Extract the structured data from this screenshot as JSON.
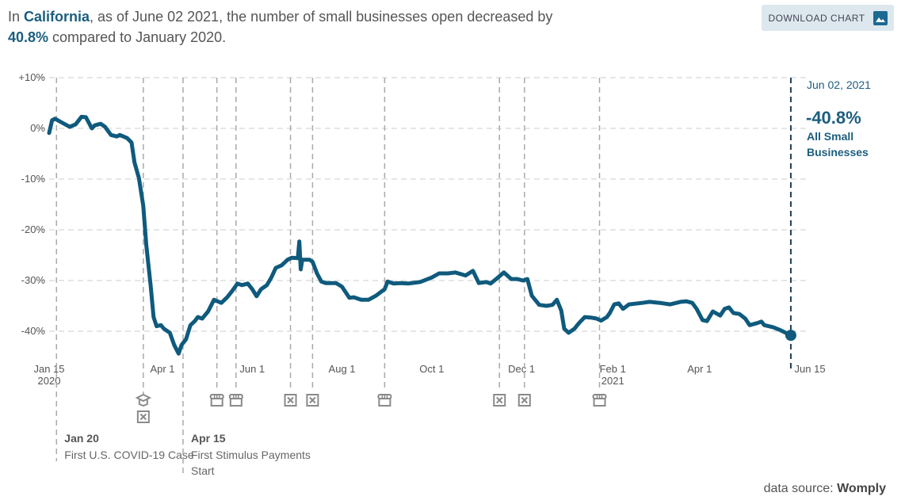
{
  "headline": {
    "prefix": "In ",
    "region": "California",
    "middle": ", as of June 02 2021, the number of small businesses open decreased by ",
    "change": "40.8%",
    "suffix": " compared to January 2020."
  },
  "download_button": {
    "label": "DOWNLOAD CHART",
    "icon": "image-icon"
  },
  "source": {
    "label": "data source: ",
    "name": "Womply"
  },
  "colors": {
    "line": "#0f5a7d",
    "grid": "#dddddd",
    "event_line": "#aaaaaa",
    "icon": "#8a8a8a",
    "accent_text": "#1b5e7e",
    "button_bg": "#dde8ee"
  },
  "chart_data": {
    "type": "line",
    "title": "",
    "xlabel": "",
    "ylabel": "",
    "ylim": [
      -47,
      10
    ],
    "xlim": [
      "2020-01-15",
      "2021-06-15"
    ],
    "grid": true,
    "y_ticks": [
      {
        "value": 10,
        "label": "+10%"
      },
      {
        "value": 0,
        "label": "0%"
      },
      {
        "value": -10,
        "label": "-10%"
      },
      {
        "value": -20,
        "label": "-20%"
      },
      {
        "value": -30,
        "label": "-30%"
      },
      {
        "value": -40,
        "label": "-40%"
      }
    ],
    "x_ticks": [
      {
        "date": "2020-01-15",
        "label": "Jan 15",
        "sub": "2020"
      },
      {
        "date": "2020-04-01",
        "label": "Apr 1",
        "sub": ""
      },
      {
        "date": "2020-06-01",
        "label": "Jun 1",
        "sub": ""
      },
      {
        "date": "2020-08-01",
        "label": "Aug 1",
        "sub": ""
      },
      {
        "date": "2020-10-01",
        "label": "Oct 1",
        "sub": ""
      },
      {
        "date": "2020-12-01",
        "label": "Dec 1",
        "sub": ""
      },
      {
        "date": "2021-02-01",
        "label": "Feb 1",
        "sub": "2021"
      },
      {
        "date": "2021-04-01",
        "label": "Apr 1",
        "sub": ""
      },
      {
        "date": "2021-06-15",
        "label": "Jun 15",
        "sub": ""
      }
    ],
    "series": [
      {
        "name": "All Small Businesses",
        "points": [
          [
            "2020-01-15",
            -0.9
          ],
          [
            "2020-01-17",
            1.6
          ],
          [
            "2020-01-19",
            1.9
          ],
          [
            "2020-01-24",
            1.1
          ],
          [
            "2020-01-29",
            0.3
          ],
          [
            "2020-02-02",
            0.8
          ],
          [
            "2020-02-06",
            2.3
          ],
          [
            "2020-02-09",
            2.2
          ],
          [
            "2020-02-13",
            0.0
          ],
          [
            "2020-02-15",
            0.6
          ],
          [
            "2020-02-19",
            0.9
          ],
          [
            "2020-02-22",
            0.3
          ],
          [
            "2020-02-26",
            -1.3
          ],
          [
            "2020-03-01",
            -1.6
          ],
          [
            "2020-03-03",
            -1.3
          ],
          [
            "2020-03-08",
            -1.9
          ],
          [
            "2020-03-11",
            -2.8
          ],
          [
            "2020-03-13",
            -6.7
          ],
          [
            "2020-03-16",
            -9.8
          ],
          [
            "2020-03-19",
            -15.3
          ],
          [
            "2020-03-21",
            -23
          ],
          [
            "2020-03-24",
            -31
          ],
          [
            "2020-03-26",
            -37.2
          ],
          [
            "2020-03-28",
            -39
          ],
          [
            "2020-03-31",
            -38.8
          ],
          [
            "2020-04-02",
            -39.5
          ],
          [
            "2020-04-06",
            -40.3
          ],
          [
            "2020-04-09",
            -42.7
          ],
          [
            "2020-04-12",
            -44.4
          ],
          [
            "2020-04-14",
            -42.7
          ],
          [
            "2020-04-17",
            -41.6
          ],
          [
            "2020-04-20",
            -38.8
          ],
          [
            "2020-04-23",
            -38
          ],
          [
            "2020-04-25",
            -37.2
          ],
          [
            "2020-04-28",
            -37.5
          ],
          [
            "2020-05-02",
            -36.1
          ],
          [
            "2020-05-06",
            -33.8
          ],
          [
            "2020-05-11",
            -34.4
          ],
          [
            "2020-05-15",
            -33.3
          ],
          [
            "2020-05-18",
            -32.2
          ],
          [
            "2020-05-22",
            -30.6
          ],
          [
            "2020-05-25",
            -30.9
          ],
          [
            "2020-05-29",
            -30.6
          ],
          [
            "2020-06-01",
            -31.7
          ],
          [
            "2020-06-04",
            -33.1
          ],
          [
            "2020-06-07",
            -31.7
          ],
          [
            "2020-06-11",
            -30.9
          ],
          [
            "2020-06-14",
            -29.4
          ],
          [
            "2020-06-17",
            -27.5
          ],
          [
            "2020-06-21",
            -27
          ],
          [
            "2020-06-25",
            -25.9
          ],
          [
            "2020-06-28",
            -25.5
          ],
          [
            "2020-07-02",
            -25.6
          ],
          [
            "2020-07-03",
            -22.3
          ],
          [
            "2020-07-04",
            -27.8
          ],
          [
            "2020-07-05",
            -25.9
          ],
          [
            "2020-07-10",
            -25.9
          ],
          [
            "2020-07-12",
            -26.3
          ],
          [
            "2020-07-15",
            -28.6
          ],
          [
            "2020-07-18",
            -30.2
          ],
          [
            "2020-07-21",
            -30.5
          ],
          [
            "2020-07-28",
            -30.5
          ],
          [
            "2020-08-01",
            -31.2
          ],
          [
            "2020-08-06",
            -33.4
          ],
          [
            "2020-08-09",
            -33.3
          ],
          [
            "2020-08-14",
            -33.8
          ],
          [
            "2020-08-19",
            -33.8
          ],
          [
            "2020-08-24",
            -33.0
          ],
          [
            "2020-08-30",
            -31.7
          ],
          [
            "2020-09-01",
            -30.2
          ],
          [
            "2020-09-05",
            -30.6
          ],
          [
            "2020-09-10",
            -30.5
          ],
          [
            "2020-09-15",
            -30.6
          ],
          [
            "2020-09-23",
            -30.3
          ],
          [
            "2020-10-01",
            -29.4
          ],
          [
            "2020-10-06",
            -28.6
          ],
          [
            "2020-10-12",
            -28.6
          ],
          [
            "2020-10-17",
            -28.4
          ],
          [
            "2020-10-24",
            -29.0
          ],
          [
            "2020-10-29",
            -28.1
          ],
          [
            "2020-11-02",
            -30.5
          ],
          [
            "2020-11-07",
            -30.3
          ],
          [
            "2020-11-10",
            -30.6
          ],
          [
            "2020-11-15",
            -29.4
          ],
          [
            "2020-11-19",
            -28.4
          ],
          [
            "2020-11-24",
            -29.7
          ],
          [
            "2020-11-28",
            -29.7
          ],
          [
            "2020-12-02",
            -30.0
          ],
          [
            "2020-12-05",
            -29.7
          ],
          [
            "2020-12-08",
            -33.0
          ],
          [
            "2020-12-13",
            -34.8
          ],
          [
            "2020-12-18",
            -35.0
          ],
          [
            "2020-12-22",
            -34.8
          ],
          [
            "2020-12-25",
            -33.8
          ],
          [
            "2020-12-28",
            -35.9
          ],
          [
            "2020-12-30",
            -39.5
          ],
          [
            "2021-01-02",
            -40.3
          ],
          [
            "2021-01-06",
            -39.5
          ],
          [
            "2021-01-09",
            -38.4
          ],
          [
            "2021-01-13",
            -37.2
          ],
          [
            "2021-01-17",
            -37.3
          ],
          [
            "2021-01-21",
            -37.5
          ],
          [
            "2021-01-24",
            -37.9
          ],
          [
            "2021-01-28",
            -37.2
          ],
          [
            "2021-01-30",
            -36.4
          ],
          [
            "2021-02-02",
            -34.7
          ],
          [
            "2021-02-05",
            -34.5
          ],
          [
            "2021-02-08",
            -35.6
          ],
          [
            "2021-02-12",
            -34.7
          ],
          [
            "2021-02-21",
            -34.4
          ],
          [
            "2021-02-26",
            -34.2
          ],
          [
            "2021-03-05",
            -34.4
          ],
          [
            "2021-03-12",
            -34.7
          ],
          [
            "2021-03-19",
            -34.2
          ],
          [
            "2021-03-23",
            -34.1
          ],
          [
            "2021-03-27",
            -34.4
          ],
          [
            "2021-03-30",
            -35.6
          ],
          [
            "2021-04-03",
            -37.8
          ],
          [
            "2021-04-06",
            -38.0
          ],
          [
            "2021-04-10",
            -36.1
          ],
          [
            "2021-04-15",
            -36.9
          ],
          [
            "2021-04-18",
            -35.6
          ],
          [
            "2021-04-21",
            -35.3
          ],
          [
            "2021-04-24",
            -36.4
          ],
          [
            "2021-04-28",
            -36.6
          ],
          [
            "2021-05-02",
            -37.5
          ],
          [
            "2021-05-05",
            -38.8
          ],
          [
            "2021-05-10",
            -38.4
          ],
          [
            "2021-05-13",
            -38.1
          ],
          [
            "2021-05-15",
            -38.8
          ],
          [
            "2021-05-21",
            -39.2
          ],
          [
            "2021-05-26",
            -39.8
          ],
          [
            "2021-06-02",
            -40.8
          ]
        ]
      }
    ],
    "current": {
      "date": "2021-06-02",
      "value": -40.8,
      "date_label": "Jun 02, 2021",
      "value_label": "-40.8%",
      "series_label_1": "All Small",
      "series_label_2": "Businesses"
    },
    "annotations": [
      {
        "date": "2020-01-20",
        "title": "Jan 20",
        "text": [
          "First U.S. COVID-19 Case"
        ],
        "icons": []
      },
      {
        "date": "2020-03-19",
        "title": "",
        "text": [],
        "icons": [
          "school-icon",
          "closed-box-icon"
        ]
      },
      {
        "date": "2020-04-15",
        "title": "Apr 15",
        "text": [
          "First Stimulus Payments",
          "Start"
        ],
        "icons": []
      },
      {
        "date": "2020-05-08",
        "title": "",
        "text": [],
        "icons": [
          "storefront-icon"
        ]
      },
      {
        "date": "2020-05-21",
        "title": "",
        "text": [],
        "icons": [
          "storefront-icon"
        ]
      },
      {
        "date": "2020-06-27",
        "title": "",
        "text": [],
        "icons": [
          "closed-box-icon"
        ]
      },
      {
        "date": "2020-07-12",
        "title": "",
        "text": [],
        "icons": [
          "closed-box-icon"
        ]
      },
      {
        "date": "2020-08-30",
        "title": "",
        "text": [],
        "icons": [
          "storefront-icon"
        ]
      },
      {
        "date": "2020-11-16",
        "title": "",
        "text": [],
        "icons": [
          "closed-box-icon"
        ]
      },
      {
        "date": "2020-12-03",
        "title": "",
        "text": [],
        "icons": [
          "closed-box-icon"
        ]
      },
      {
        "date": "2021-01-23",
        "title": "",
        "text": [],
        "icons": [
          "storefront-icon"
        ]
      }
    ]
  }
}
